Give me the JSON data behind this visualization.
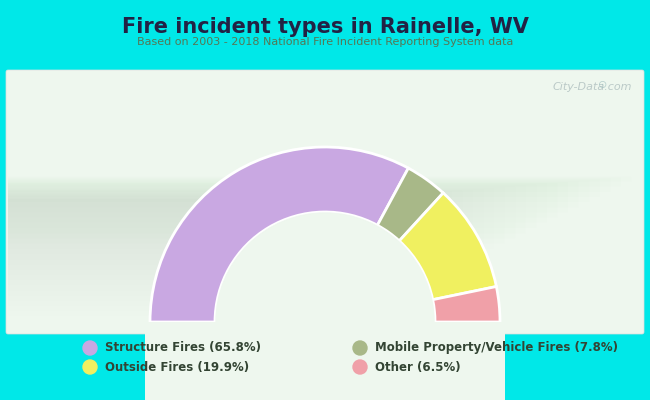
{
  "title": "Fire incident types in Rainelle, WV",
  "subtitle": "Based on 2003 - 2018 National Fire Incident Reporting System data",
  "watermark": "City-Data.com",
  "percentages": [
    65.8,
    7.8,
    19.9,
    6.5
  ],
  "colors": [
    "#c9a8e2",
    "#a8b888",
    "#f0f060",
    "#f0a0a8"
  ],
  "legend_labels_left": [
    "Structure Fires (65.8%)",
    "Outside Fires (19.9%)"
  ],
  "legend_labels_right": [
    "Mobile Property/Vehicle Fires (7.8%)",
    "Other (6.5%)"
  ],
  "legend_colors_left": [
    "#c9a8e2",
    "#f0f060"
  ],
  "legend_colors_right": [
    "#a8b888",
    "#f0a0a8"
  ],
  "outer_bg": "#00e8e8",
  "chart_bg": "#e8f5e8",
  "title_color": "#222244",
  "subtitle_color": "#557755"
}
